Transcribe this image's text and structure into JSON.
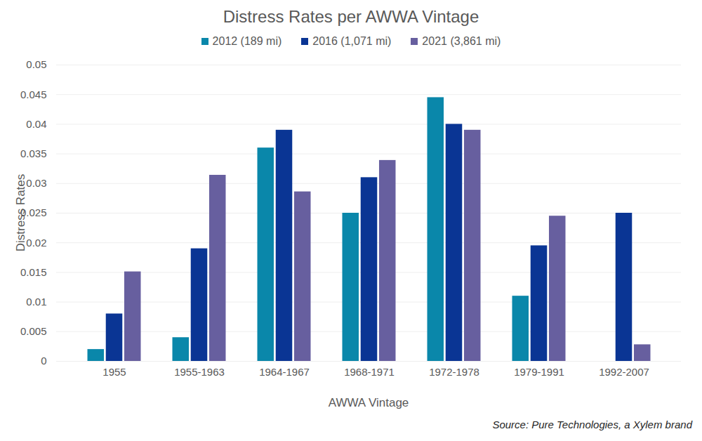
{
  "chart_data": {
    "type": "bar",
    "title": "Distress Rates per AWWA Vintage",
    "xlabel": "AWWA Vintage",
    "ylabel": "Distress Rates",
    "caption": "Source: Pure Technologies, a Xylem brand",
    "categories": [
      "1955",
      "1955-1963",
      "1964-1967",
      "1968-1971",
      "1972-1978",
      "1979-1991",
      "1992-2007"
    ],
    "series": [
      {
        "name": "2012 (189 mi)",
        "color": "#0a87aa",
        "values": [
          0.002,
          0.004,
          0.036,
          0.025,
          0.0445,
          0.011,
          null
        ]
      },
      {
        "name": "2016 (1,071 mi)",
        "color": "#0a3594",
        "values": [
          0.008,
          0.019,
          0.039,
          0.031,
          0.04,
          0.0195,
          0.025
        ]
      },
      {
        "name": "2021 (3,861 mi)",
        "color": "#675f9f",
        "values": [
          0.0151,
          0.0314,
          0.0286,
          0.0339,
          0.039,
          0.0245,
          0.0028
        ]
      }
    ],
    "ylim": [
      0,
      0.05
    ],
    "yticks": [
      0,
      0.005,
      0.01,
      0.015,
      0.02,
      0.025,
      0.03,
      0.035,
      0.04,
      0.045,
      0.05
    ],
    "grid": true,
    "legend": "top"
  }
}
